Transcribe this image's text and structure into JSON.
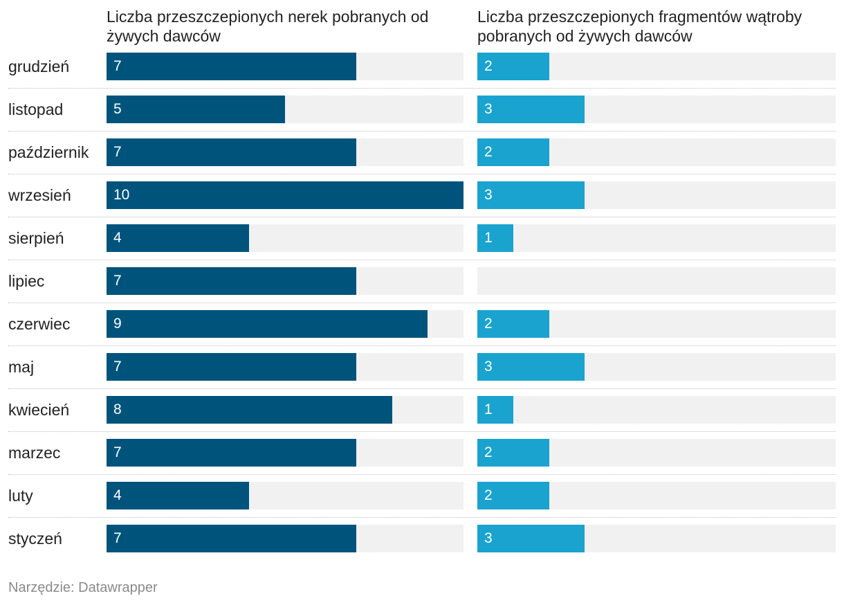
{
  "chart_data": {
    "type": "bar",
    "orientation": "horizontal",
    "categories": [
      "grudzień",
      "listopad",
      "październik",
      "wrzesień",
      "sierpień",
      "lipiec",
      "czerwiec",
      "maj",
      "kwiecień",
      "marzec",
      "luty",
      "styczeń"
    ],
    "series": [
      {
        "name": "Liczba przeszczepionych nerek pobranych od żywych dawców",
        "values": [
          7,
          5,
          7,
          10,
          4,
          7,
          9,
          7,
          8,
          7,
          4,
          7
        ],
        "max": 10,
        "color": "#00547c"
      },
      {
        "name": "Liczba przeszczepionych fragmentów wątroby pobranych od żywych dawców",
        "values": [
          2,
          3,
          2,
          3,
          1,
          null,
          2,
          3,
          1,
          2,
          2,
          3
        ],
        "max": 10,
        "color": "#1aa3cf"
      }
    ],
    "track_color": "#f1f1f1"
  },
  "footer": "Narzędzie: Datawrapper"
}
